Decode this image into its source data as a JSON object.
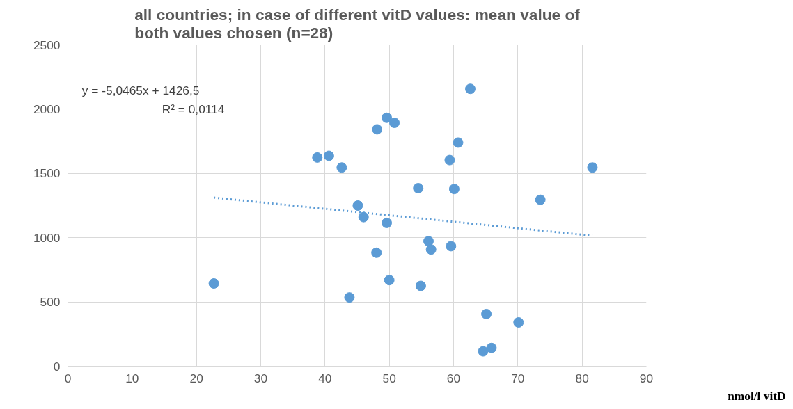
{
  "chart_data": {
    "type": "scatter",
    "title": "all countries; in case of different vitD values: mean value of both values chosen (n=28)",
    "x": [
      22.7,
      38.8,
      40.6,
      42.6,
      45.1,
      46.0,
      43.8,
      48.0,
      48.1,
      49.6,
      50.8,
      49.6,
      50.0,
      54.5,
      54.9,
      56.1,
      56.5,
      59.4,
      59.6,
      60.1,
      60.7,
      62.6,
      65.1,
      64.6,
      65.9,
      70.1,
      73.5,
      81.6
    ],
    "series": [
      {
        "color": "#5b9bd5",
        "marker": "circle",
        "values": [
          644,
          1624,
          1637,
          1546,
          1250,
          1160,
          535,
          883,
          1843,
          1933,
          1894,
          1115,
          670,
          1385,
          625,
          973,
          908,
          1604,
          934,
          1379,
          1740,
          2158,
          406,
          116,
          142,
          341,
          1295,
          1546
        ]
      },
      {
        "type": "line",
        "color": "#5b9bd5",
        "line_style": "dotted",
        "marker": "none",
        "x": [
          22.7,
          81.6
        ],
        "values": [
          1312,
          1015
        ]
      }
    ],
    "annotations": [
      "y = -5,0465x + 1426,5",
      "R² = 0,0114",
      "nmol/l vitD"
    ],
    "xlim": [
      0,
      90
    ],
    "xticks": [
      0,
      10,
      20,
      30,
      40,
      50,
      60,
      70,
      80,
      90
    ],
    "ylim": [
      0,
      2500
    ],
    "yticks": [
      0,
      500,
      1000,
      1500,
      2000,
      2500
    ],
    "grid": true
  }
}
